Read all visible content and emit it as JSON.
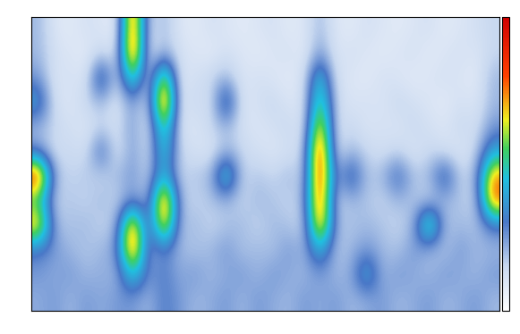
{
  "chart_data": {
    "type": "heatmap",
    "tick_labels": false,
    "color_range": [
      0,
      100
    ],
    "cells": [
      [
        20,
        10,
        8,
        12,
        10,
        8,
        90,
        12,
        20,
        10,
        8,
        12,
        10,
        8,
        10,
        12,
        8,
        10,
        20,
        10,
        8,
        12,
        10,
        8,
        10,
        12,
        8,
        10,
        12,
        15
      ],
      [
        20,
        12,
        10,
        8,
        15,
        10,
        95,
        10,
        20,
        12,
        10,
        8,
        12,
        10,
        8,
        10,
        12,
        8,
        25,
        10,
        12,
        10,
        8,
        10,
        12,
        8,
        10,
        12,
        10,
        15
      ],
      [
        25,
        10,
        12,
        10,
        45,
        12,
        60,
        10,
        70,
        10,
        12,
        15,
        20,
        10,
        12,
        10,
        8,
        12,
        50,
        12,
        10,
        8,
        12,
        10,
        8,
        10,
        12,
        10,
        8,
        20
      ],
      [
        40,
        12,
        10,
        15,
        20,
        10,
        25,
        12,
        95,
        10,
        15,
        12,
        45,
        10,
        12,
        15,
        10,
        12,
        60,
        15,
        10,
        12,
        10,
        15,
        12,
        10,
        8,
        12,
        10,
        20
      ],
      [
        20,
        15,
        12,
        10,
        15,
        12,
        25,
        10,
        60,
        12,
        10,
        15,
        20,
        12,
        10,
        12,
        15,
        10,
        80,
        12,
        15,
        10,
        12,
        10,
        15,
        12,
        10,
        15,
        12,
        25
      ],
      [
        25,
        12,
        15,
        12,
        35,
        10,
        25,
        12,
        50,
        15,
        12,
        10,
        20,
        15,
        12,
        10,
        12,
        15,
        95,
        12,
        20,
        15,
        12,
        15,
        10,
        15,
        12,
        10,
        15,
        40
      ],
      [
        90,
        20,
        15,
        18,
        15,
        20,
        25,
        15,
        45,
        15,
        18,
        20,
        55,
        15,
        18,
        15,
        20,
        15,
        95,
        20,
        40,
        18,
        20,
        35,
        18,
        20,
        40,
        15,
        20,
        75
      ],
      [
        50,
        15,
        18,
        15,
        20,
        15,
        25,
        18,
        90,
        20,
        15,
        18,
        20,
        15,
        20,
        18,
        15,
        20,
        90,
        15,
        20,
        18,
        15,
        20,
        18,
        15,
        20,
        18,
        15,
        80
      ],
      [
        75,
        20,
        18,
        20,
        15,
        20,
        85,
        18,
        80,
        18,
        20,
        15,
        18,
        20,
        15,
        20,
        18,
        15,
        85,
        20,
        18,
        20,
        18,
        15,
        20,
        65,
        18,
        20,
        18,
        30
      ],
      [
        30,
        25,
        20,
        18,
        20,
        25,
        90,
        20,
        30,
        20,
        18,
        20,
        25,
        18,
        20,
        18,
        25,
        20,
        45,
        18,
        20,
        25,
        20,
        18,
        25,
        20,
        18,
        25,
        20,
        20
      ],
      [
        25,
        22,
        25,
        20,
        22,
        20,
        50,
        25,
        30,
        22,
        25,
        20,
        22,
        25,
        20,
        25,
        22,
        20,
        25,
        20,
        22,
        45,
        20,
        25,
        22,
        20,
        25,
        22,
        20,
        25
      ],
      [
        22,
        25,
        20,
        25,
        22,
        25,
        25,
        20,
        30,
        25,
        20,
        22,
        25,
        20,
        25,
        22,
        20,
        25,
        22,
        25,
        20,
        22,
        25,
        20,
        22,
        25,
        20,
        22,
        25,
        20
      ]
    ]
  }
}
